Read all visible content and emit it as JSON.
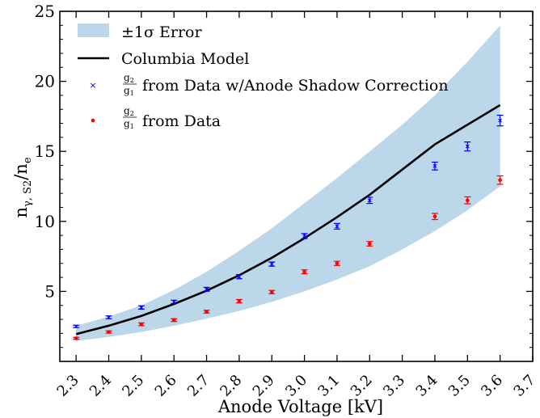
{
  "chart_data": {
    "type": "scatter",
    "xlabel": "Anode Voltage [kV]",
    "ylabel": {
      "base": "n",
      "sub": "γ, S2",
      "over": "/n",
      "sub2": "e"
    },
    "xlim": [
      2.25,
      3.7
    ],
    "ylim": [
      0,
      25
    ],
    "x_ticks": [
      "2.3",
      "2.4",
      "2.5",
      "2.6",
      "2.7",
      "2.8",
      "2.9",
      "3.0",
      "3.1",
      "3.2",
      "3.3",
      "3.4",
      "3.5",
      "3.6",
      "3.7"
    ],
    "y_ticks": [
      "5",
      "10",
      "15",
      "20",
      "25"
    ],
    "legend_position": "top-left",
    "legend": {
      "band_label": "±1σ Error",
      "model_label": "Columbia Model",
      "frac_num": "g",
      "frac_num_sub": "2",
      "frac_den": "g",
      "frac_den_sub": "1",
      "shadow_label": "from Data w/Anode Shadow Correction",
      "data_label": "from Data"
    },
    "colors": {
      "band": "#bcd6ea",
      "model": "#000000",
      "shadow": "#0000ff",
      "data": "#ff0000"
    },
    "band": {
      "x": [
        2.3,
        2.4,
        2.5,
        2.6,
        2.7,
        2.8,
        2.9,
        3.0,
        3.1,
        3.2,
        3.3,
        3.4,
        3.5,
        3.6
      ],
      "lower": [
        1.45,
        1.75,
        2.1,
        2.55,
        3.05,
        3.6,
        4.25,
        5.0,
        5.85,
        6.8,
        8.0,
        9.3,
        10.8,
        12.5
      ],
      "upper": [
        2.55,
        3.2,
        4.0,
        5.1,
        6.4,
        7.9,
        9.5,
        11.3,
        13.1,
        15.0,
        16.9,
        19.0,
        21.4,
        24.0
      ]
    },
    "model": {
      "x": [
        2.3,
        2.4,
        2.5,
        2.6,
        2.7,
        2.8,
        2.9,
        3.0,
        3.1,
        3.2,
        3.3,
        3.4,
        3.5,
        3.6
      ],
      "y": [
        1.95,
        2.55,
        3.25,
        4.1,
        5.05,
        6.15,
        7.4,
        8.8,
        10.3,
        11.9,
        13.7,
        15.5,
        16.9,
        18.3
      ]
    },
    "series": [
      {
        "name": "shadow",
        "x": [
          2.3,
          2.4,
          2.5,
          2.6,
          2.7,
          2.8,
          2.9,
          3.0,
          3.1,
          3.2,
          3.4,
          3.5,
          3.6
        ],
        "y": [
          2.5,
          3.15,
          3.85,
          4.25,
          5.15,
          6.05,
          6.95,
          8.95,
          9.65,
          11.5,
          13.95,
          15.35,
          17.2
        ],
        "err": [
          0.08,
          0.1,
          0.12,
          0.12,
          0.14,
          0.15,
          0.15,
          0.18,
          0.2,
          0.22,
          0.28,
          0.32,
          0.38
        ]
      },
      {
        "name": "data",
        "x": [
          2.3,
          2.4,
          2.5,
          2.6,
          2.7,
          2.8,
          2.9,
          3.0,
          3.1,
          3.2,
          3.4,
          3.5,
          3.6
        ],
        "y": [
          1.65,
          2.1,
          2.65,
          2.95,
          3.55,
          4.3,
          4.95,
          6.4,
          7.0,
          8.4,
          10.35,
          11.5,
          12.95
        ],
        "err": [
          0.07,
          0.08,
          0.1,
          0.1,
          0.1,
          0.12,
          0.12,
          0.14,
          0.15,
          0.16,
          0.22,
          0.25,
          0.3
        ]
      }
    ]
  }
}
